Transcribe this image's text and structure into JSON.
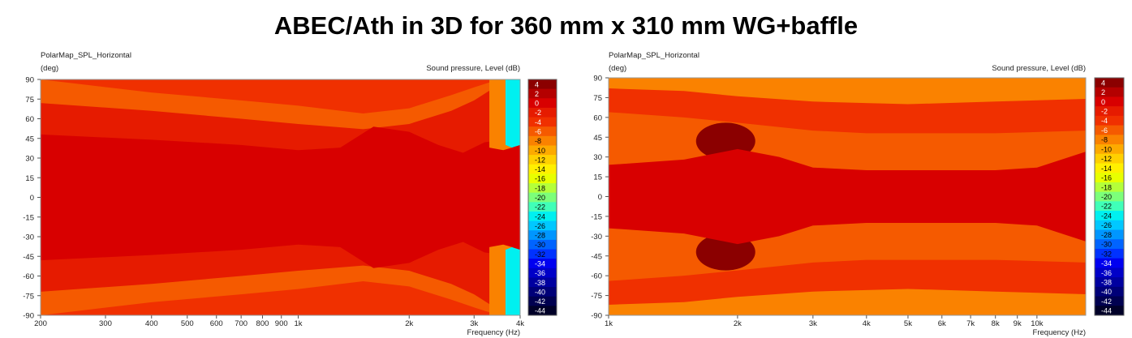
{
  "title": "ABEC/Ath in 3D for 360 mm x 310 mm WG+baffle",
  "chart_data": [
    {
      "type": "heatmap",
      "name": "PolarMap_SPL_Horizontal",
      "unit_label": "(deg)",
      "legend_label": "Sound pressure, Level  (dB)",
      "xlabel": "Frequency  (Hz)",
      "x_scale": "log",
      "xlim": [
        200,
        4000
      ],
      "ylim": [
        -90,
        90
      ],
      "y_ticks": [
        90,
        75,
        60,
        45,
        30,
        15,
        0,
        -15,
        -30,
        -45,
        -60,
        -75,
        -90
      ],
      "x_ticks": [
        {
          "v": 200,
          "l": "200"
        },
        {
          "v": 300,
          "l": "300"
        },
        {
          "v": 400,
          "l": "400"
        },
        {
          "v": 500,
          "l": "500"
        },
        {
          "v": 600,
          "l": "600"
        },
        {
          "v": 700,
          "l": "700"
        },
        {
          "v": 800,
          "l": "800"
        },
        {
          "v": 900,
          "l": "900"
        },
        {
          "v": 1000,
          "l": "1k"
        },
        {
          "v": 2000,
          "l": "2k"
        },
        {
          "v": 3000,
          "l": "3k"
        },
        {
          "v": 4000,
          "l": "4k"
        }
      ],
      "contours": [
        {
          "level": -2,
          "freq": [
            200,
            400,
            700,
            1000,
            1500,
            2000,
            2600,
            3000,
            3500,
            4000
          ],
          "angle": [
            72,
            66,
            60,
            56,
            52,
            56,
            66,
            74,
            86,
            90
          ]
        },
        {
          "level": -4,
          "freq": [
            200,
            400,
            700,
            1000,
            1500,
            2000,
            2600,
            3000,
            3500,
            4000
          ],
          "angle": [
            90,
            80,
            74,
            70,
            64,
            68,
            78,
            84,
            90,
            90
          ]
        },
        {
          "level": 0,
          "freq": [
            200,
            400,
            700,
            1000,
            1300,
            1600,
            2000,
            2400,
            2800,
            3200,
            3600,
            4000
          ],
          "angle": [
            48,
            44,
            40,
            36,
            38,
            54,
            50,
            40,
            34,
            42,
            44,
            40
          ]
        },
        {
          "level": -8,
          "freq": [
            3300,
            3600,
            3800,
            4000
          ],
          "angle": [
            38,
            36,
            38,
            42
          ]
        },
        {
          "level": -24,
          "freq": [
            3650,
            3800,
            4000
          ],
          "angle": [
            40,
            38,
            40
          ]
        }
      ]
    },
    {
      "type": "heatmap",
      "name": "PolarMap_SPL_Horizontal",
      "unit_label": "(deg)",
      "legend_label": "Sound pressure, Level  (dB)",
      "xlabel": "Frequency  (Hz)",
      "x_scale": "log",
      "xlim": [
        1000,
        13000
      ],
      "ylim": [
        -90,
        90
      ],
      "y_ticks": [
        90,
        75,
        60,
        45,
        30,
        15,
        0,
        -15,
        -30,
        -45,
        -60,
        -75,
        -90
      ],
      "x_ticks": [
        {
          "v": 1000,
          "l": "1k"
        },
        {
          "v": 2000,
          "l": "2k"
        },
        {
          "v": 3000,
          "l": "3k"
        },
        {
          "v": 4000,
          "l": "4k"
        },
        {
          "v": 5000,
          "l": "5k"
        },
        {
          "v": 6000,
          "l": "6k"
        },
        {
          "v": 7000,
          "l": "7k"
        },
        {
          "v": 8000,
          "l": "8k"
        },
        {
          "v": 9000,
          "l": "9k"
        },
        {
          "v": 10000,
          "l": "10k"
        }
      ],
      "contours": [
        {
          "level": 4,
          "freq": [
            1600,
            1800,
            2000,
            2200
          ],
          "angle": [
            40,
            48,
            44,
            36
          ]
        },
        {
          "level": 0,
          "freq": [
            1000,
            1500,
            2000,
            2500,
            3000,
            4000,
            6000,
            8000,
            10000,
            13000
          ],
          "angle": [
            24,
            28,
            36,
            30,
            22,
            20,
            20,
            20,
            22,
            34
          ]
        },
        {
          "level": -4,
          "freq": [
            1000,
            1500,
            2000,
            3000,
            4000,
            6000,
            8000,
            13000
          ],
          "angle": [
            64,
            60,
            56,
            50,
            48,
            48,
            48,
            50
          ]
        },
        {
          "level": -8,
          "freq": [
            1000,
            1500,
            2000,
            3000,
            5000,
            8000,
            13000
          ],
          "angle": [
            82,
            80,
            76,
            72,
            70,
            72,
            74
          ]
        }
      ]
    }
  ],
  "colorbar": {
    "labels": [
      "4",
      "2",
      "0",
      "-2",
      "-4",
      "-6",
      "-8",
      "-10",
      "-12",
      "-14",
      "-16",
      "-18",
      "-20",
      "-22",
      "-24",
      "-26",
      "-28",
      "-30",
      "-32",
      "-34",
      "-36",
      "-38",
      "-40",
      "-42",
      "-44"
    ],
    "colors": [
      "#8b0000",
      "#b40000",
      "#d80000",
      "#e61b00",
      "#f03000",
      "#f55a00",
      "#fa8200",
      "#fdaa00",
      "#ffd000",
      "#fff000",
      "#e8ff00",
      "#b4ff3a",
      "#7cff7a",
      "#40ffb8",
      "#00f0f0",
      "#00c8ff",
      "#0096ff",
      "#0064ff",
      "#0032ff",
      "#0000f0",
      "#0000c8",
      "#0000a0",
      "#000078",
      "#000050",
      "#000028"
    ]
  }
}
